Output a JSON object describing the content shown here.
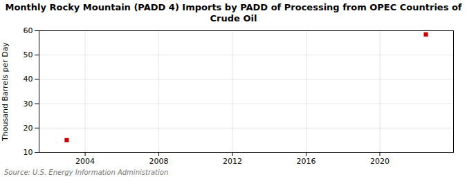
{
  "chart_data": {
    "type": "scatter",
    "title": "Monthly Rocky Mountain (PADD 4) Imports by PADD of Processing from OPEC Countries of\nCrude Oil",
    "ylabel": "Thousand Barrels per Day",
    "source": "Source: U.S. Energy Information Administration",
    "x": [
      2003.0,
      2022.5
    ],
    "values": [
      15.0,
      58.5
    ],
    "color": "#cc0000",
    "marker": "square",
    "xlim": [
      2001.5,
      2024
    ],
    "ylim": [
      10,
      60
    ],
    "xticks": [
      2004,
      2008,
      2012,
      2016,
      2020
    ],
    "yticks": [
      10,
      20,
      30,
      40,
      50,
      60
    ],
    "grid": true
  }
}
